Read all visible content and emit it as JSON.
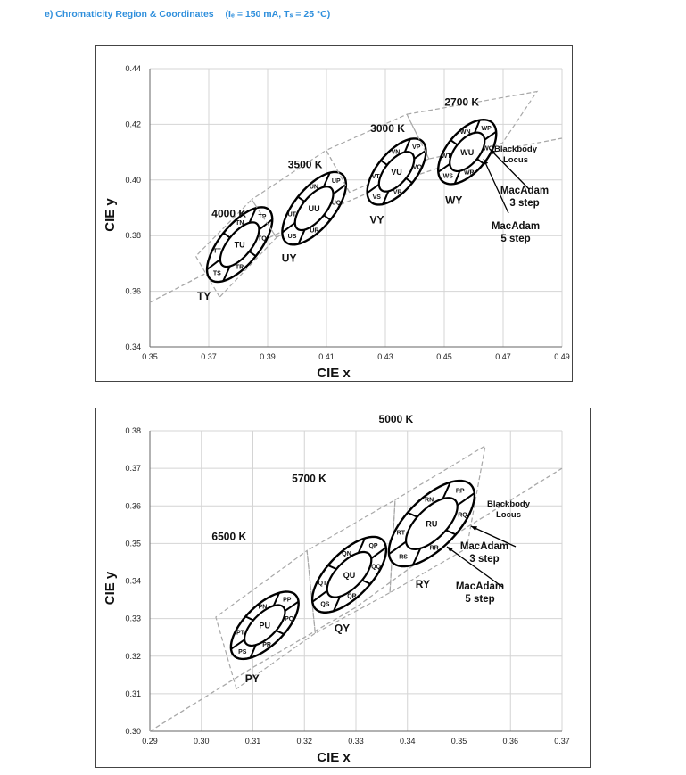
{
  "header": {
    "label": "e)",
    "title": "Chromaticity Region & Coordinates",
    "conditions": "(Iₑ = 150 mA, Tₛ = 25 °C)"
  },
  "chart_data": [
    {
      "type": "scatter",
      "title": "",
      "xlabel": "CIE x",
      "ylabel": "CIE y",
      "xlim": [
        0.35,
        0.49
      ],
      "ylim": [
        0.34,
        0.44
      ],
      "xticks": [
        "0.35",
        "0.37",
        "0.39",
        "0.41",
        "0.43",
        "0.45",
        "0.47",
        "0.49"
      ],
      "yticks": [
        "0.34",
        "0.36",
        "0.38",
        "0.40",
        "0.42",
        "0.44"
      ],
      "grid": true,
      "blackbody_locus_label": "Blackbody Locus",
      "macadam_3_label": "MacAdam 3 step",
      "macadam_5_label": "MacAdam 5 step",
      "blackbody_locus": [
        [
          0.35,
          0.356
        ],
        [
          0.37,
          0.367
        ],
        [
          0.39,
          0.379
        ],
        [
          0.41,
          0.389
        ],
        [
          0.43,
          0.398
        ],
        [
          0.45,
          0.405
        ],
        [
          0.47,
          0.411
        ],
        [
          0.49,
          0.415
        ]
      ],
      "regions": [
        {
          "cct": "4000 K",
          "bin": "TY",
          "center": [
            0.3805,
            0.3768
          ],
          "a3": 0.0095,
          "b3": 0.0041,
          "a5": 0.016,
          "b5": 0.0069,
          "angle": 53,
          "outline": [
            [
              0.3737,
              0.3579
            ],
            [
              0.3656,
              0.3726
            ],
            [
              0.3846,
              0.393
            ],
            [
              0.393,
              0.3793
            ]
          ],
          "sub": [
            "TN",
            "TP",
            "TQ",
            "TR",
            "TS",
            "TT"
          ],
          "center_label": "TU"
        },
        {
          "cct": "3500 K",
          "bin": "UY",
          "center": [
            0.4058,
            0.3898
          ],
          "a3": 0.0093,
          "b3": 0.0041,
          "a5": 0.0155,
          "b5": 0.0069,
          "angle": 53,
          "outline": [
            [
              0.393,
              0.3793
            ],
            [
              0.3846,
              0.393
            ],
            [
              0.4099,
              0.4107
            ],
            [
              0.4178,
              0.3956
            ]
          ],
          "sub": [
            "UN",
            "UP",
            "UQ",
            "UR",
            "US",
            "UT"
          ],
          "center_label": "UU"
        },
        {
          "cct": "3000 K",
          "bin": "VY",
          "center": [
            0.4338,
            0.403
          ],
          "a3": 0.0084,
          "b3": 0.004,
          "a5": 0.014,
          "b5": 0.0067,
          "angle": 53,
          "outline": [
            [
              0.4178,
              0.3956
            ],
            [
              0.4099,
              0.4107
            ],
            [
              0.4373,
              0.4236
            ],
            [
              0.4448,
              0.4076
            ]
          ],
          "sub": [
            "VN",
            "VP",
            "VQ",
            "VR",
            "VS",
            "VT"
          ],
          "center_label": "VU"
        },
        {
          "cct": "2700 K",
          "bin": "WY",
          "center": [
            0.4578,
            0.4101
          ],
          "a3": 0.0081,
          "b3": 0.0042,
          "a5": 0.0135,
          "b5": 0.007,
          "angle": 53,
          "outline": [
            [
              0.4448,
              0.4076
            ],
            [
              0.4373,
              0.4236
            ],
            [
              0.4815,
              0.4318
            ],
            [
              0.4697,
              0.4132
            ]
          ],
          "sub": [
            "WN",
            "WP",
            "WQ",
            "WR",
            "WS",
            "WT"
          ],
          "center_label": "WU"
        }
      ]
    },
    {
      "type": "scatter",
      "title": "",
      "xlabel": "CIE x",
      "ylabel": "CIE y",
      "xlim": [
        0.29,
        0.37
      ],
      "ylim": [
        0.3,
        0.38
      ],
      "xticks": [
        "0.29",
        "0.30",
        "0.31",
        "0.32",
        "0.33",
        "0.34",
        "0.35",
        "0.36",
        "0.37"
      ],
      "yticks": [
        "0.30",
        "0.31",
        "0.32",
        "0.33",
        "0.34",
        "0.35",
        "0.36",
        "0.37",
        "0.38"
      ],
      "grid": true,
      "blackbody_locus_label": "Blackbody Locus",
      "macadam_3_label": "MacAdam 3 step",
      "macadam_5_label": "MacAdam 5 step",
      "blackbody_locus": [
        [
          0.29,
          0.3
        ],
        [
          0.31,
          0.317
        ],
        [
          0.33,
          0.333
        ],
        [
          0.35,
          0.353
        ],
        [
          0.37,
          0.37
        ]
      ],
      "regions": [
        {
          "cct": "6500 K",
          "bin": "PY",
          "center": [
            0.3123,
            0.3282
          ],
          "a3": 0.00615,
          "b3": 0.0026,
          "a5": 0.0102,
          "b5": 0.0044,
          "angle": 58,
          "outline": [
            [
              0.3068,
              0.3113
            ],
            [
              0.3028,
              0.3304
            ],
            [
              0.3205,
              0.3481
            ],
            [
              0.3221,
              0.3261
            ]
          ],
          "sub": [
            "PN",
            "PP",
            "PQ",
            "PR",
            "PS",
            "PT"
          ],
          "center_label": "PU"
        },
        {
          "cct": "5700 K",
          "bin": "QY",
          "center": [
            0.3287,
            0.3417
          ],
          "a3": 0.0068,
          "b3": 0.0029,
          "a5": 0.0114,
          "b5": 0.0048,
          "angle": 59,
          "outline": [
            [
              0.3221,
              0.3261
            ],
            [
              0.3205,
              0.3481
            ],
            [
              0.3376,
              0.3616
            ],
            [
              0.3366,
              0.3369
            ]
          ],
          "sub": [
            "QN",
            "QP",
            "QQ",
            "QR",
            "QS",
            "QT"
          ],
          "center_label": "QU"
        },
        {
          "cct": "5000 K",
          "bin": "RY",
          "center": [
            0.3447,
            0.3553
          ],
          "a3": 0.0078,
          "b3": 0.0033,
          "a5": 0.013,
          "b5": 0.0055,
          "angle": 58,
          "outline": [
            [
              0.3366,
              0.3369
            ],
            [
              0.3376,
              0.3616
            ],
            [
              0.3551,
              0.376
            ],
            [
              0.3515,
              0.3487
            ]
          ],
          "sub": [
            "RN",
            "RP",
            "RQ",
            "RR",
            "RS",
            "RT"
          ],
          "center_label": "RU"
        }
      ]
    }
  ],
  "colors": {
    "title": "#2f8fdc",
    "grid": "#d4d4d4",
    "dashed": "#a8a8a8",
    "ellipse": "#000000"
  }
}
